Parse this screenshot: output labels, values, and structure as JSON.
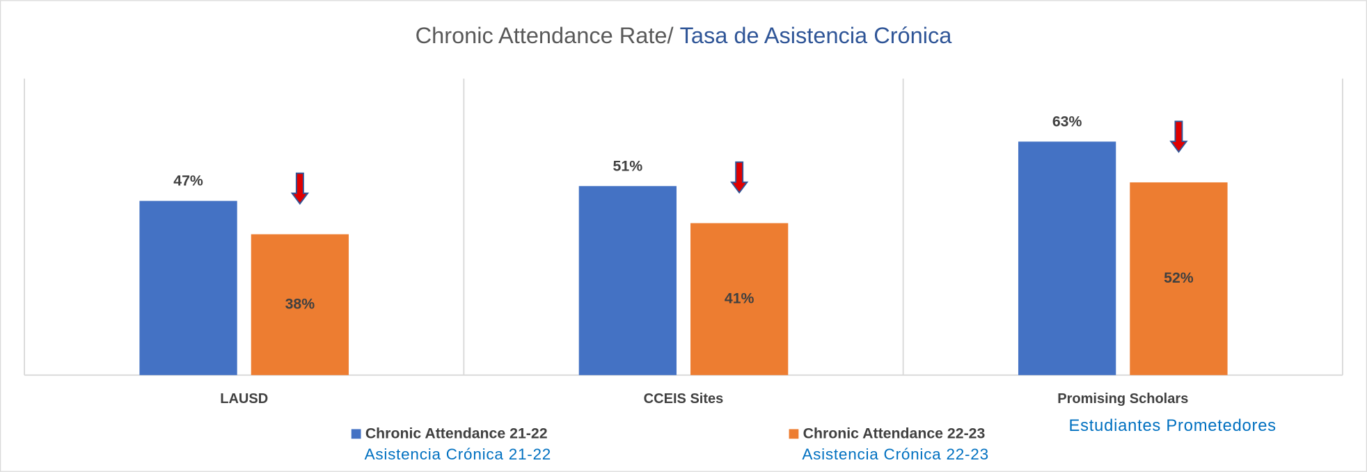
{
  "chart_data": {
    "type": "bar",
    "title": "Chronic Attendance Rate/ ",
    "title_es": "Tasa de Asistencia Crónica",
    "categories": [
      "LAUSD",
      "CCEIS Sites",
      "Promising Scholars"
    ],
    "category_sublabels": [
      null,
      null,
      "Estudiantes Prometedores"
    ],
    "series": [
      {
        "name": "Chronic Attendance 21-22",
        "name_es": "Asistencia Crónica 21-22",
        "color": "#4472c4",
        "values": [
          47,
          51,
          63
        ],
        "value_labels": [
          "47%",
          "51%",
          "63%"
        ]
      },
      {
        "name": "Chronic Attendance 22-23",
        "name_es": "Asistencia Crónica 22-23",
        "color": "#ed7d31",
        "values": [
          38,
          41,
          52
        ],
        "value_labels": [
          "38%",
          "41%",
          "52%"
        ]
      }
    ],
    "ylim": [
      0,
      80
    ],
    "legend": "bottom"
  }
}
